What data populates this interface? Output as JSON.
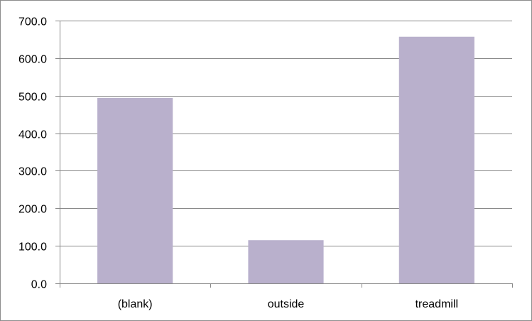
{
  "chart_data": {
    "type": "bar",
    "title": "",
    "xlabel": "",
    "ylabel": "",
    "categories": [
      "(blank)",
      "outside",
      "treadmill"
    ],
    "values": [
      494.0,
      115.0,
      657.0
    ],
    "ylim": [
      0,
      700
    ],
    "yticks": [
      0,
      100,
      200,
      300,
      400,
      500,
      600,
      700
    ],
    "ytick_labels": [
      "0.0",
      "100.0",
      "200.0",
      "300.0",
      "400.0",
      "500.0",
      "600.0",
      "700.0"
    ],
    "grid": "horizontal",
    "legend": "none",
    "bar_color": "#b9b0cc",
    "grid_color": "#888888",
    "axis_color": "#888888"
  }
}
